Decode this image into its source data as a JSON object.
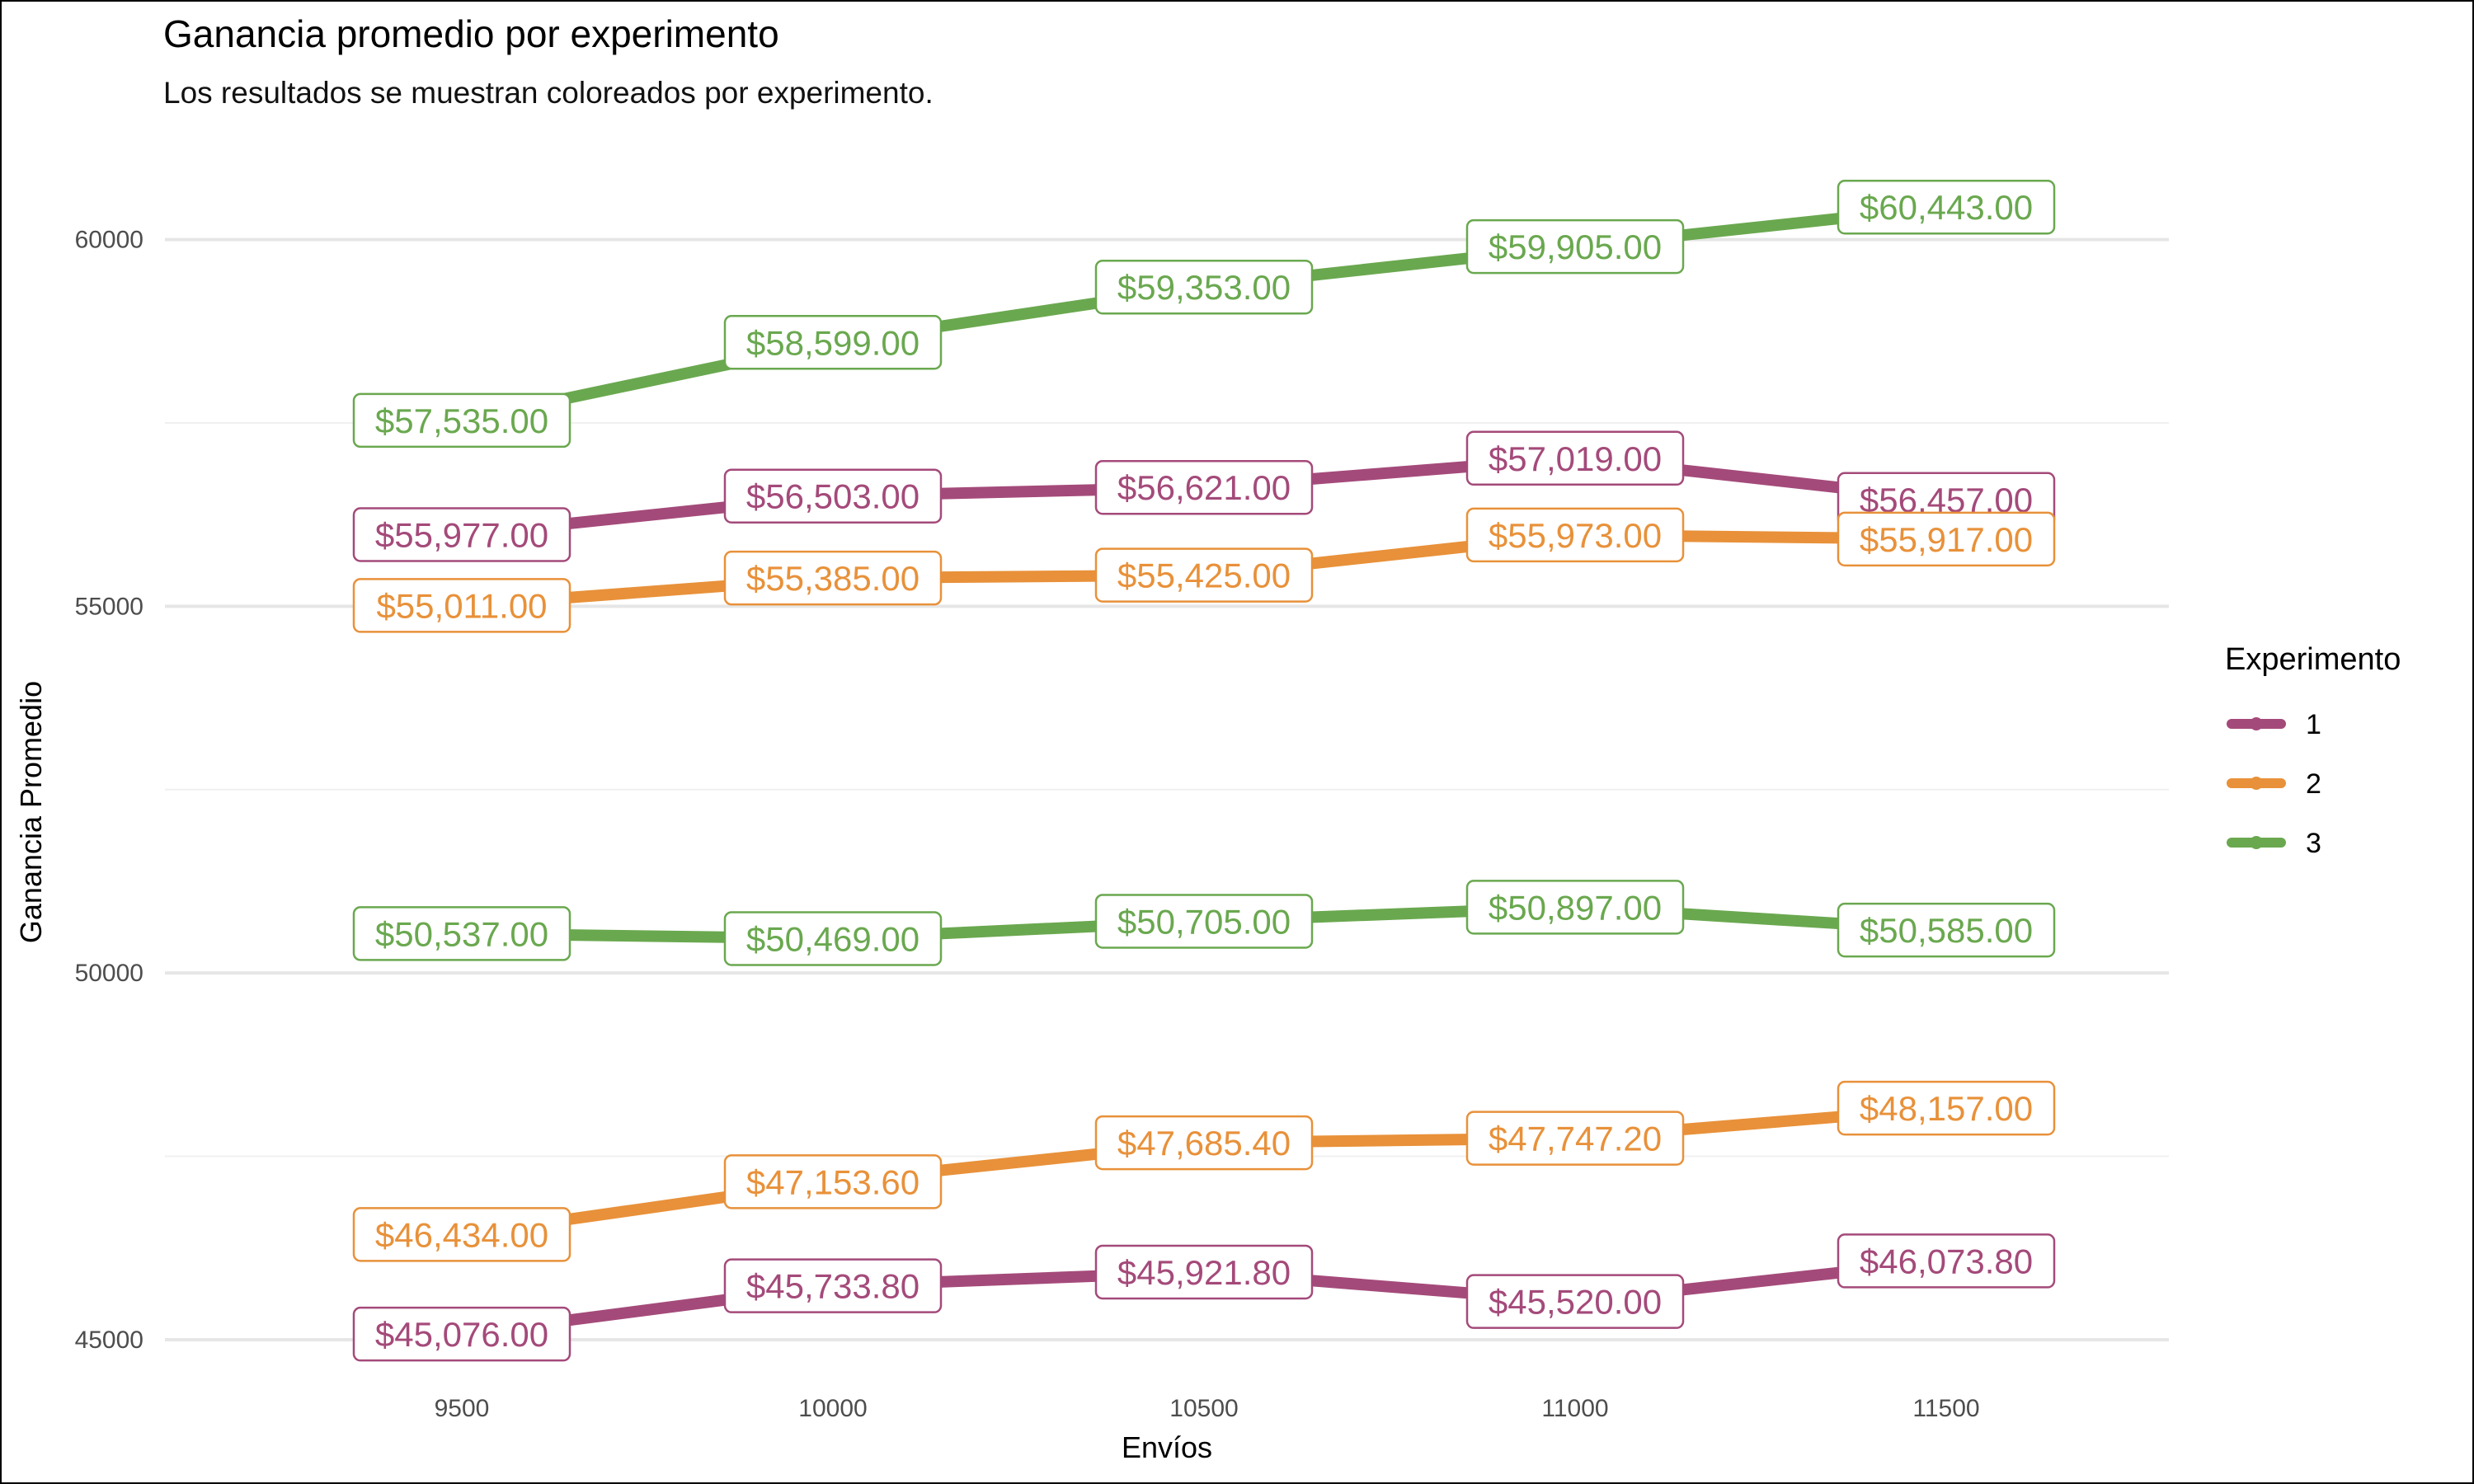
{
  "chart_data": {
    "type": "line",
    "title": "Ganancia promedio por experimento",
    "subtitle": "Los resultados se muestran coloreados por experimento.",
    "xlabel": "Envíos",
    "ylabel": "Ganancia Promedio",
    "x_ticks": [
      9500,
      10000,
      10500,
      11000,
      11500
    ],
    "y_ticks": [
      45000,
      50000,
      55000,
      60000
    ],
    "xlim": [
      9100,
      11800
    ],
    "ylim": [
      44100,
      61300
    ],
    "grid": true,
    "legend": {
      "title": "Experimento",
      "position": "right",
      "entries": [
        {
          "name": "1",
          "color": "#a44a7a"
        },
        {
          "name": "2",
          "color": "#e8913a"
        },
        {
          "name": "3",
          "color": "#6aa84f"
        }
      ]
    },
    "x": [
      9500,
      10000,
      10500,
      11000,
      11500
    ],
    "series": [
      {
        "name": "1",
        "color": "#a44a7a",
        "values": [
          55977.0,
          56503.0,
          56621.0,
          57019.0,
          56457.0
        ],
        "labels": [
          "$55,977.00",
          "$56,503.00",
          "$56,621.00",
          "$57,019.00",
          "$56,457.00"
        ]
      },
      {
        "name": "2",
        "color": "#e8913a",
        "values": [
          55011.0,
          55385.0,
          55425.0,
          55973.0,
          55917.0
        ],
        "labels": [
          "$55,011.00",
          "$55,385.00",
          "$55,425.00",
          "$55,973.00",
          "$55,917.00"
        ]
      },
      {
        "name": "3",
        "color": "#6aa84f",
        "values": [
          57535.0,
          58599.0,
          59353.0,
          59905.0,
          60443.0
        ],
        "labels": [
          "$57,535.00",
          "$58,599.00",
          "$59,353.00",
          "$59,905.00",
          "$60,443.00"
        ]
      },
      {
        "name": "3",
        "color": "#6aa84f",
        "values": [
          50537.0,
          50469.0,
          50705.0,
          50897.0,
          50585.0
        ],
        "labels": [
          "$50,537.00",
          "$50,469.00",
          "$50,705.00",
          "$50,897.00",
          "$50,585.00"
        ]
      },
      {
        "name": "2",
        "color": "#e8913a",
        "values": [
          46434.0,
          47153.6,
          47685.4,
          47747.2,
          48157.0
        ],
        "labels": [
          "$46,434.00",
          "$47,153.60",
          "$47,685.40",
          "$47,747.20",
          "$48,157.00"
        ]
      },
      {
        "name": "1",
        "color": "#a44a7a",
        "values": [
          45076.0,
          45733.8,
          45921.8,
          45520.0,
          46073.8
        ],
        "labels": [
          "$45,076.00",
          "$45,733.80",
          "$45,921.80",
          "$45,520.00",
          "$46,073.80"
        ]
      }
    ]
  }
}
